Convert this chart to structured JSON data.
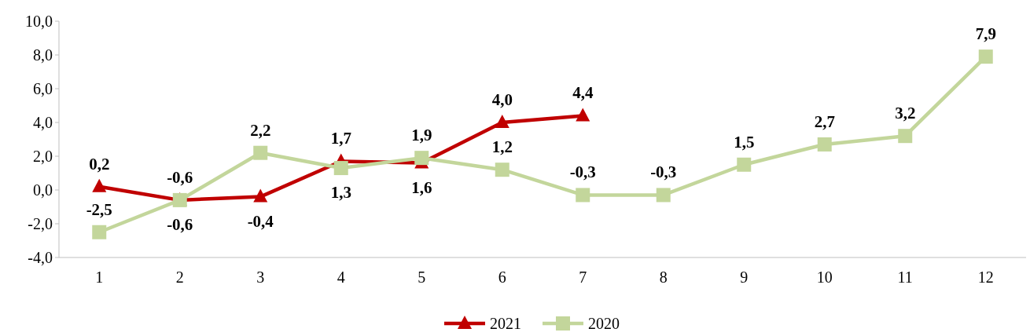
{
  "chart_data": {
    "type": "line",
    "categories": [
      "1",
      "2",
      "3",
      "4",
      "5",
      "6",
      "7",
      "8",
      "9",
      "10",
      "11",
      "12"
    ],
    "ylim": [
      -4,
      10
    ],
    "yticks": [
      {
        "value": -4,
        "label": "-4,0"
      },
      {
        "value": -2,
        "label": "-2,0"
      },
      {
        "value": 0,
        "label": "0,0"
      },
      {
        "value": 2,
        "label": "2,0"
      },
      {
        "value": 4,
        "label": "4,0"
      },
      {
        "value": 6,
        "label": "6,0"
      },
      {
        "value": 8,
        "label": "8,0"
      },
      {
        "value": 10,
        "label": "10,0"
      }
    ],
    "legend": "bottom",
    "grid": false,
    "line_style": "solid",
    "series": [
      {
        "name": "2021",
        "color": "#c00000",
        "marker": "triangle",
        "values": [
          0.2,
          -0.6,
          -0.4,
          1.7,
          1.6,
          4.0,
          4.4,
          null,
          null,
          null,
          null,
          null
        ],
        "value_labels": [
          "0,2",
          "-0,6",
          "-0,4",
          "1,7",
          "1,6",
          "4,0",
          "4,4",
          null,
          null,
          null,
          null,
          null
        ]
      },
      {
        "name": "2020",
        "color": "#c3d69b",
        "marker": "square",
        "values": [
          -2.5,
          -0.6,
          2.2,
          1.3,
          1.9,
          1.2,
          -0.3,
          -0.3,
          1.5,
          2.7,
          3.2,
          7.9
        ],
        "value_labels": [
          "-2,5",
          "-0,6",
          "2,2",
          "1,3",
          "1,9",
          "1,2",
          "-0,3",
          "-0,3",
          "1,5",
          "2,7",
          "3,2",
          "7,9"
        ]
      }
    ]
  }
}
